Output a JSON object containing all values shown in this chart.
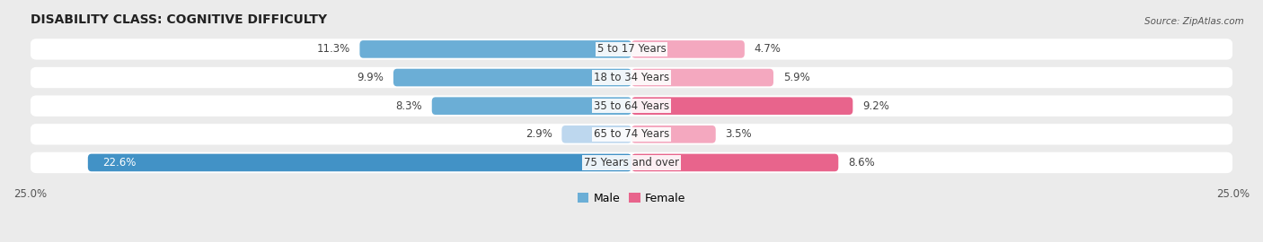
{
  "title": "DISABILITY CLASS: COGNITIVE DIFFICULTY",
  "source": "Source: ZipAtlas.com",
  "categories": [
    "5 to 17 Years",
    "18 to 34 Years",
    "35 to 64 Years",
    "65 to 74 Years",
    "75 Years and over"
  ],
  "male_values": [
    11.3,
    9.9,
    8.3,
    2.9,
    22.6
  ],
  "female_values": [
    4.7,
    5.9,
    9.2,
    3.5,
    8.6
  ],
  "male_colors": [
    "#6baed6",
    "#6baed6",
    "#6baed6",
    "#bdd7ee",
    "#4292c6"
  ],
  "female_colors": [
    "#f4a8bf",
    "#f4a8bf",
    "#e8648c",
    "#f4a8bf",
    "#e8648c"
  ],
  "max_val": 25.0,
  "bg_color": "#ebebeb",
  "title_fontsize": 10,
  "label_fontsize": 8.5,
  "value_fontsize": 8.5,
  "tick_fontsize": 8.5,
  "legend_fontsize": 9
}
